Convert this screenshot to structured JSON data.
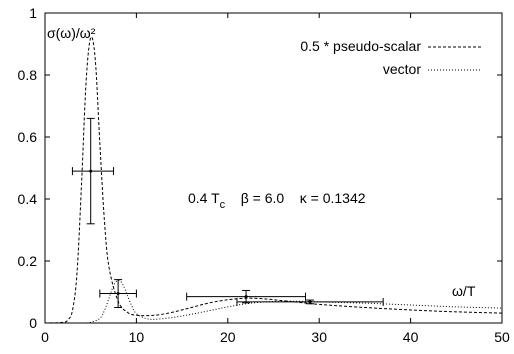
{
  "chart_data": {
    "type": "line",
    "title": "",
    "xlabel": "ω/T",
    "ylabel": "σ(ω)/ω²",
    "xlim": [
      0,
      50
    ],
    "ylim": [
      0,
      1
    ],
    "grid": false,
    "legend_placement": "top-right",
    "x_ticks": [
      0,
      10,
      20,
      30,
      40,
      50
    ],
    "y_ticks": [
      0,
      0.2,
      0.4,
      0.6,
      0.8,
      1
    ],
    "x_tick_labels": [
      "0",
      "10",
      "20",
      "30",
      "40",
      "50"
    ],
    "y_tick_labels": [
      "0",
      "0.2",
      "0.4",
      "0.6",
      "0.8",
      "1"
    ],
    "annotation": {
      "base": "0.4 T",
      "sub": "c",
      "rest": "    β = 6.0    κ = 0.1342"
    },
    "series": [
      {
        "name": "0.5 * pseudo-scalar",
        "style": "dashed",
        "x": [
          0,
          2,
          2.5,
          3,
          3.5,
          4,
          4.5,
          5,
          5.5,
          6,
          6.5,
          7,
          8,
          9,
          10,
          12,
          14,
          16,
          18,
          20,
          22,
          24,
          26,
          28,
          30,
          35,
          40,
          45,
          50
        ],
        "y": [
          0,
          0.002,
          0.01,
          0.04,
          0.16,
          0.45,
          0.78,
          0.92,
          0.85,
          0.58,
          0.33,
          0.18,
          0.07,
          0.035,
          0.025,
          0.025,
          0.035,
          0.05,
          0.065,
          0.075,
          0.08,
          0.078,
          0.072,
          0.066,
          0.06,
          0.05,
          0.042,
          0.036,
          0.032
        ]
      },
      {
        "name": "vector",
        "style": "dotted",
        "x": [
          0,
          4,
          5,
          6,
          6.5,
          7,
          7.5,
          8,
          8.5,
          9,
          9.5,
          10,
          11,
          12,
          14,
          16,
          18,
          20,
          22,
          24,
          26,
          28,
          30,
          35,
          40,
          45,
          50
        ],
        "y": [
          0,
          0,
          0.002,
          0.015,
          0.04,
          0.08,
          0.12,
          0.138,
          0.125,
          0.09,
          0.055,
          0.03,
          0.015,
          0.012,
          0.018,
          0.028,
          0.04,
          0.052,
          0.062,
          0.068,
          0.07,
          0.07,
          0.068,
          0.064,
          0.058,
          0.052,
          0.048
        ]
      }
    ],
    "error_bars": [
      {
        "x": 5,
        "y": 0.49,
        "xerr": [
          3,
          7.5
        ],
        "yerr": [
          0.32,
          0.66
        ]
      },
      {
        "x": 8,
        "y": 0.095,
        "xerr": [
          6,
          10
        ],
        "yerr": [
          0.05,
          0.14
        ]
      },
      {
        "x": 22,
        "y": 0.085,
        "xerr": [
          15.5,
          28.5
        ],
        "yerr": [
          0.065,
          0.105
        ]
      },
      {
        "x": 29,
        "y": 0.068,
        "xerr": [
          21,
          37
        ],
        "yerr": [
          0.062,
          0.074
        ]
      }
    ]
  }
}
